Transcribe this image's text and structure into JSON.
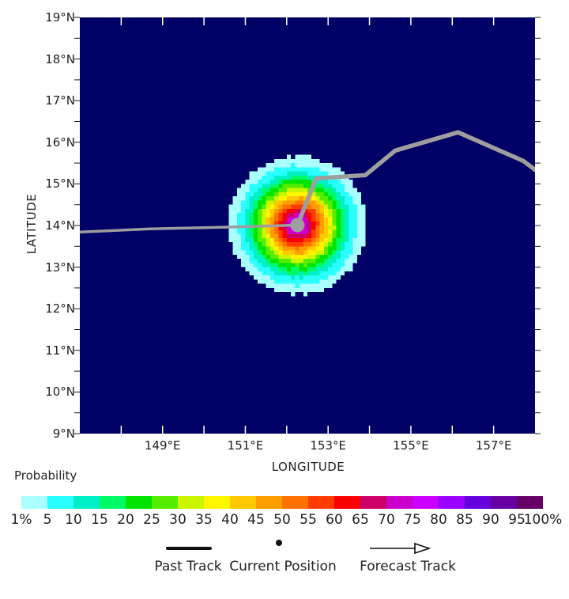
{
  "figure": {
    "background_color": "#ffffff",
    "text_color": "#1f1f1f"
  },
  "map": {
    "xlabel": "LONGITUDE",
    "ylabel": "LATITUDE",
    "background_color": "#000066",
    "track_color": "#9e9e9e",
    "inner_tick_color": "#ffffff",
    "outer_tick_color": "#1a1a1a",
    "x_tick_labels": [
      "149°E",
      "151°E",
      "153°E",
      "155°E",
      "157°E"
    ],
    "y_tick_labels": [
      "19°N",
      "18°N",
      "17°N",
      "16°N",
      "15°N",
      "14°N",
      "13°N",
      "12°N",
      "11°N",
      "10°N",
      "9°N"
    ]
  },
  "chart_data": {
    "type": "heatmap",
    "x_axis": {
      "label": "LONGITUDE",
      "min": 147,
      "max": 158,
      "unit": "°E",
      "labeled_ticks": [
        149,
        151,
        153,
        155,
        157
      ],
      "minor_tick_step": 1
    },
    "y_axis": {
      "label": "LATITUDE",
      "min": 9,
      "max": 19,
      "unit": "°N",
      "labeled_ticks": [
        19,
        18,
        17,
        16,
        15,
        14,
        13,
        12,
        11,
        10,
        9
      ],
      "minor_tick_step": 0.5
    },
    "probability_field": {
      "center": {
        "lon": 152.26,
        "lat": 14.01
      },
      "rings": [
        {
          "min_probability_pct": 1,
          "outer_radius_deg": 1.66,
          "color": "#aaffff"
        },
        {
          "min_probability_pct": 5,
          "outer_radius_deg": 1.45,
          "color": "#2affff"
        },
        {
          "min_probability_pct": 10,
          "outer_radius_deg": 1.28,
          "color": "#00f0c8"
        },
        {
          "min_probability_pct": 15,
          "outer_radius_deg": 1.16,
          "color": "#00fa66"
        },
        {
          "min_probability_pct": 20,
          "outer_radius_deg": 1.07,
          "color": "#00e400"
        },
        {
          "min_probability_pct": 25,
          "outer_radius_deg": 0.97,
          "color": "#55ee00"
        },
        {
          "min_probability_pct": 30,
          "outer_radius_deg": 0.88,
          "color": "#ccf500"
        },
        {
          "min_probability_pct": 35,
          "outer_radius_deg": 0.8,
          "color": "#fff500"
        },
        {
          "min_probability_pct": 40,
          "outer_radius_deg": 0.72,
          "color": "#ffc800"
        },
        {
          "min_probability_pct": 45,
          "outer_radius_deg": 0.65,
          "color": "#ff9c00"
        },
        {
          "min_probability_pct": 50,
          "outer_radius_deg": 0.57,
          "color": "#ff7200"
        },
        {
          "min_probability_pct": 55,
          "outer_radius_deg": 0.5,
          "color": "#ff3c00"
        },
        {
          "min_probability_pct": 60,
          "outer_radius_deg": 0.42,
          "color": "#fa0000"
        },
        {
          "min_probability_pct": 65,
          "outer_radius_deg": 0.34,
          "color": "#cc0066"
        },
        {
          "min_probability_pct": 70,
          "outer_radius_deg": 0.27,
          "color": "#cc00cc"
        },
        {
          "min_probability_pct": 75,
          "outer_radius_deg": 0.18,
          "color": "#cc00ff"
        }
      ]
    },
    "past_track": [
      {
        "lon": 146.95,
        "lat": 13.84
      },
      {
        "lon": 148.7,
        "lat": 13.92
      },
      {
        "lon": 150.5,
        "lat": 13.96
      },
      {
        "lon": 152.26,
        "lat": 14.01
      }
    ],
    "current_position": {
      "lon": 152.26,
      "lat": 14.01
    },
    "forecast_track": [
      {
        "lon": 152.26,
        "lat": 14.01
      },
      {
        "lon": 152.71,
        "lat": 15.13
      },
      {
        "lon": 153.9,
        "lat": 15.21
      },
      {
        "lon": 154.62,
        "lat": 15.8
      },
      {
        "lon": 156.14,
        "lat": 16.24
      },
      {
        "lon": 157.72,
        "lat": 15.55
      },
      {
        "lon": 158.08,
        "lat": 15.28
      }
    ]
  },
  "colorbar": {
    "title": "Probability",
    "tick_labels": [
      "1%",
      "5",
      "10",
      "15",
      "20",
      "25",
      "30",
      "35",
      "40",
      "45",
      "50",
      "55",
      "60",
      "65",
      "70",
      "75",
      "80",
      "85",
      "90",
      "95",
      "100%"
    ],
    "segment_colors": [
      "#aaffff",
      "#2affff",
      "#00f0c8",
      "#00fa66",
      "#00e400",
      "#55ee00",
      "#ccf500",
      "#fff500",
      "#ffc800",
      "#ff9c00",
      "#ff7200",
      "#ff3c00",
      "#fa0000",
      "#cc0066",
      "#cc00cc",
      "#cc00ff",
      "#9900ff",
      "#6600dd",
      "#6600a2",
      "#660066"
    ]
  },
  "legend": {
    "past_track_label": "Past Track",
    "current_position_label": "Current Position",
    "forecast_track_label": "Forecast Track"
  }
}
